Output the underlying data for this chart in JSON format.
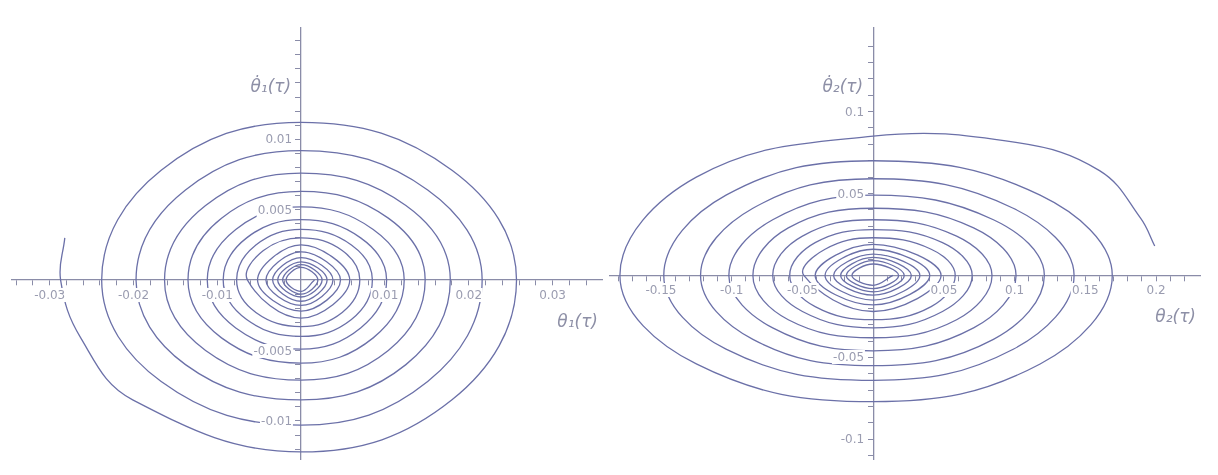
{
  "chart_data": [
    {
      "type": "line",
      "xlabel": "θ₁(τ)",
      "ylabel": "θ̇₁(τ)",
      "marker": "none",
      "line_style": "solid",
      "xlim": [
        -0.0345,
        0.0359
      ],
      "ylim": [
        -0.0127,
        0.0179
      ],
      "xticks": [
        {
          "value": -0.034,
          "label": null
        },
        {
          "value": -0.032,
          "label": null
        },
        -0.03,
        {
          "value": -0.028,
          "label": null
        },
        {
          "value": -0.026,
          "label": null
        },
        {
          "value": -0.024,
          "label": null
        },
        {
          "value": -0.022,
          "label": null
        },
        -0.02,
        {
          "value": -0.018,
          "label": null
        },
        {
          "value": -0.016,
          "label": null
        },
        {
          "value": -0.014,
          "label": null
        },
        {
          "value": -0.012,
          "label": null
        },
        -0.01,
        {
          "value": -0.008,
          "label": null
        },
        {
          "value": -0.006,
          "label": null
        },
        {
          "value": -0.004,
          "label": null
        },
        {
          "value": -0.002,
          "label": null
        },
        {
          "value": 0.002,
          "label": null
        },
        {
          "value": 0.004,
          "label": null
        },
        {
          "value": 0.006,
          "label": null
        },
        {
          "value": 0.008,
          "label": null
        },
        0.01,
        {
          "value": 0.012,
          "label": null
        },
        {
          "value": 0.014,
          "label": null
        },
        {
          "value": 0.016,
          "label": null
        },
        {
          "value": 0.018,
          "label": null
        },
        0.02,
        {
          "value": 0.022,
          "label": null
        },
        {
          "value": 0.024,
          "label": null
        },
        {
          "value": 0.026,
          "label": null
        },
        {
          "value": 0.028,
          "label": null
        },
        0.03,
        {
          "value": 0.032,
          "label": null
        },
        {
          "value": 0.034,
          "label": null
        }
      ],
      "yticks": [
        {
          "value": -0.012,
          "label": null
        },
        {
          "value": -0.011,
          "label": null
        },
        -0.01,
        {
          "value": -0.009,
          "label": null
        },
        {
          "value": -0.008,
          "label": null
        },
        {
          "value": -0.007,
          "label": null
        },
        {
          "value": -0.006,
          "label": null
        },
        -0.005,
        {
          "value": -0.004,
          "label": null
        },
        {
          "value": -0.003,
          "label": null
        },
        {
          "value": -0.002,
          "label": null
        },
        {
          "value": -0.001,
          "label": null
        },
        {
          "value": 0.001,
          "label": null
        },
        {
          "value": 0.002,
          "label": null
        },
        {
          "value": 0.003,
          "label": null
        },
        {
          "value": 0.004,
          "label": null
        },
        0.005,
        {
          "value": 0.006,
          "label": null
        },
        {
          "value": 0.007,
          "label": null
        },
        {
          "value": 0.008,
          "label": null
        },
        {
          "value": 0.009,
          "label": null
        },
        0.01,
        {
          "value": 0.011,
          "label": null
        },
        {
          "value": 0.012,
          "label": null
        },
        {
          "value": 0.013,
          "label": null
        },
        {
          "value": 0.014,
          "label": null
        },
        {
          "value": 0.015,
          "label": null
        },
        {
          "value": 0.016,
          "label": null
        },
        {
          "value": 0.017,
          "label": null
        }
      ],
      "series": [
        {
          "color": "#6b70a8",
          "x": [
            -0.0282,
            -0.0287,
            -0.0263,
            -0.0201,
            0,
            0.018,
            0.0257,
            0.018,
            0,
            -0.0167,
            -0.0238,
            -0.0167,
            0,
            0.0151,
            0.0216,
            0.0151,
            0,
            -0.0138,
            -0.0197,
            -0.0138,
            0,
            0.0125,
            0.0178,
            0.0125,
            0,
            -0.0114,
            -0.0163,
            -0.0114,
            0,
            0.0104,
            0.0148,
            0.0104,
            0,
            -0.0095,
            -0.0135,
            -0.0095,
            0,
            0.0086,
            0.0123,
            0.0086,
            0,
            -0.0078,
            -0.0112,
            -0.0078,
            0,
            0.0071,
            0.0102,
            0.0071,
            0,
            -0.0065,
            -0.0093,
            -0.0065,
            0,
            0.006,
            0.0085,
            0.006,
            0,
            -0.0054,
            -0.0077,
            -0.0054,
            0,
            0.0049,
            0.007,
            0.0049,
            0,
            -0.0045,
            -0.0064,
            0,
            0.0058,
            0,
            -0.0052,
            0,
            0.0047,
            0,
            -0.0042,
            0,
            0.0038,
            0,
            -0.0034,
            0,
            0.0031,
            0,
            -0.0028,
            0,
            0.0025,
            0,
            -0.0022,
            0,
            0.002,
            0,
            -0.0018,
            0,
            0.0016
          ],
          "values": [
            0.003,
            0,
            -0.0041,
            -0.0085,
            -0.0122,
            -0.0085,
            0,
            0.0078,
            0.0112,
            0.0078,
            0,
            -0.0072,
            -0.0103,
            -0.0072,
            0,
            0.0064,
            0.0092,
            0.0064,
            0,
            -0.006,
            -0.0085,
            -0.006,
            0,
            0.0053,
            0.0076,
            0.0053,
            0,
            -0.005,
            -0.0071,
            -0.005,
            0,
            0.0044,
            0.0063,
            0.0044,
            0,
            -0.0041,
            -0.0059,
            -0.0041,
            0,
            0.0036,
            0.0052,
            0.0036,
            0,
            -0.0034,
            -0.0049,
            -0.0034,
            0,
            0.003,
            0.0043,
            0.003,
            0,
            -0.0028,
            -0.004,
            -0.0028,
            0,
            0.0025,
            0.0036,
            0.0025,
            0,
            -0.0023,
            -0.0033,
            -0.0023,
            0,
            0.0021,
            0.003,
            0.0021,
            0,
            -0.0027,
            0,
            0.0025,
            0,
            -0.0022,
            0,
            0.002,
            0,
            -0.0018,
            0,
            0.0016,
            0,
            -0.0015,
            0,
            0.0013,
            0,
            -0.0012,
            0,
            0.0011,
            0,
            -0.001,
            0,
            0.0009,
            0,
            -0.0008,
            0
          ]
        }
      ]
    },
    {
      "type": "line",
      "xlabel": "θ₂(τ)",
      "ylabel": "θ̇₂(τ)",
      "marker": "none",
      "line_style": "solid",
      "xlim": [
        -0.186,
        0.231
      ],
      "ylim": [
        -0.112,
        0.151
      ],
      "xticks": [
        {
          "value": -0.18,
          "label": null
        },
        {
          "value": -0.17,
          "label": null
        },
        {
          "value": -0.16,
          "label": null
        },
        -0.15,
        {
          "value": -0.14,
          "label": null
        },
        {
          "value": -0.13,
          "label": null
        },
        {
          "value": -0.12,
          "label": null
        },
        {
          "value": -0.11,
          "label": null
        },
        -0.1,
        {
          "value": -0.09,
          "label": null
        },
        {
          "value": -0.08,
          "label": null
        },
        {
          "value": -0.07,
          "label": null
        },
        {
          "value": -0.06,
          "label": null
        },
        -0.05,
        {
          "value": -0.04,
          "label": null
        },
        {
          "value": -0.03,
          "label": null
        },
        {
          "value": -0.02,
          "label": null
        },
        {
          "value": -0.01,
          "label": null
        },
        {
          "value": 0.01,
          "label": null
        },
        {
          "value": 0.02,
          "label": null
        },
        {
          "value": 0.03,
          "label": null
        },
        {
          "value": 0.04,
          "label": null
        },
        0.05,
        {
          "value": 0.06,
          "label": null
        },
        {
          "value": 0.07,
          "label": null
        },
        {
          "value": 0.08,
          "label": null
        },
        {
          "value": 0.09,
          "label": null
        },
        0.1,
        {
          "value": 0.11,
          "label": null
        },
        {
          "value": 0.12,
          "label": null
        },
        {
          "value": 0.13,
          "label": null
        },
        {
          "value": 0.14,
          "label": null
        },
        0.15,
        {
          "value": 0.16,
          "label": null
        },
        {
          "value": 0.17,
          "label": null
        },
        {
          "value": 0.18,
          "label": null
        },
        {
          "value": 0.19,
          "label": null
        },
        0.2,
        {
          "value": 0.21,
          "label": null
        },
        {
          "value": 0.22,
          "label": null
        }
      ],
      "yticks": [
        {
          "value": -0.11,
          "label": null
        },
        -0.1,
        {
          "value": -0.09,
          "label": null
        },
        {
          "value": -0.08,
          "label": null
        },
        {
          "value": -0.07,
          "label": null
        },
        {
          "value": -0.06,
          "label": null
        },
        -0.05,
        {
          "value": -0.04,
          "label": null
        },
        {
          "value": -0.03,
          "label": null
        },
        {
          "value": -0.02,
          "label": null
        },
        {
          "value": -0.01,
          "label": null
        },
        {
          "value": 0.01,
          "label": null
        },
        {
          "value": 0.02,
          "label": null
        },
        {
          "value": 0.03,
          "label": null
        },
        {
          "value": 0.04,
          "label": null
        },
        0.05,
        {
          "value": 0.06,
          "label": null
        },
        {
          "value": 0.07,
          "label": null
        },
        {
          "value": 0.08,
          "label": null
        },
        {
          "value": 0.09,
          "label": null
        },
        0.1,
        {
          "value": 0.11,
          "label": null
        },
        {
          "value": 0.12,
          "label": null
        },
        {
          "value": 0.13,
          "label": null
        },
        {
          "value": 0.14,
          "label": null
        }
      ],
      "series": [
        {
          "color": "#6b70a8",
          "x": [
            0.199,
            0.189,
            0.16,
            0.102,
            0,
            -0.125,
            -0.179,
            -0.125,
            0,
            0.118,
            0.169,
            0.118,
            0,
            -0.104,
            -0.148,
            -0.104,
            0,
            0.099,
            0.142,
            0.099,
            0,
            -0.085,
            -0.122,
            -0.085,
            0,
            0.085,
            0.121,
            0.085,
            0,
            -0.071,
            -0.102,
            -0.071,
            0,
            0.071,
            0.101,
            0.071,
            0,
            -0.06,
            -0.085,
            -0.06,
            0,
            0.059,
            0.084,
            0.059,
            0,
            -0.05,
            -0.071,
            -0.05,
            0,
            0.049,
            0.07,
            0.049,
            0,
            -0.041,
            -0.059,
            -0.041,
            0,
            0.041,
            0.058,
            0.041,
            0,
            -0.034,
            -0.049,
            0,
            0.048,
            0,
            -0.041,
            0,
            0.04,
            0,
            -0.034,
            0,
            0.033,
            0,
            -0.028,
            0,
            0.027,
            0,
            -0.023,
            0,
            0.022,
            0,
            -0.019,
            0,
            0.018,
            0,
            -0.015,
            0,
            0.014
          ],
          "values": [
            0.018,
            0.035,
            0.064,
            0.081,
            0.085,
            0.06,
            0,
            -0.054,
            -0.077,
            -0.054,
            0,
            0.049,
            0.07,
            0.049,
            0,
            -0.045,
            -0.064,
            -0.045,
            0,
            0.041,
            0.059,
            0.041,
            0,
            -0.039,
            -0.055,
            -0.039,
            0,
            0.034,
            0.049,
            0.034,
            0,
            -0.032,
            -0.046,
            -0.032,
            0,
            0.029,
            0.041,
            0.029,
            0,
            -0.027,
            -0.038,
            -0.027,
            0,
            0.024,
            0.034,
            0.024,
            0,
            -0.022,
            -0.032,
            -0.022,
            0,
            0.02,
            0.028,
            0.02,
            0,
            -0.019,
            -0.027,
            -0.019,
            0,
            0.016,
            0.023,
            0.016,
            0,
            -0.022,
            0,
            0.019,
            0,
            -0.018,
            0,
            0.016,
            0,
            -0.015,
            0,
            0.013,
            0,
            -0.012,
            0,
            0.011,
            0,
            -0.01,
            0,
            0.009,
            0,
            -0.008,
            0,
            0.007,
            0,
            -0.006,
            0
          ]
        }
      ]
    }
  ]
}
